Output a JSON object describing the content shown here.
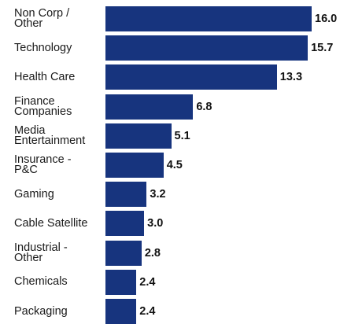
{
  "chart_data": {
    "type": "bar",
    "orientation": "horizontal",
    "categories": [
      "Non Corp /\nOther",
      "Technology",
      "Health Care",
      "Finance\nCompanies",
      "Media\nEntertainment",
      "Insurance -\nP&C",
      "Gaming",
      "Cable Satellite",
      "Industrial -\nOther",
      "Chemicals",
      "Packaging"
    ],
    "values": [
      16.0,
      15.7,
      13.3,
      6.8,
      5.1,
      4.5,
      3.2,
      3.0,
      2.8,
      2.4,
      2.4
    ],
    "value_labels": [
      "16.0",
      "15.7",
      "13.3",
      "6.8",
      "5.1",
      "4.5",
      "3.2",
      "3.0",
      "2.8",
      "2.4",
      "2.4"
    ],
    "title": "",
    "xlabel": "",
    "ylabel": "",
    "xlim": [
      0,
      16.0
    ],
    "grid": false,
    "bar_color": "#17347e"
  }
}
